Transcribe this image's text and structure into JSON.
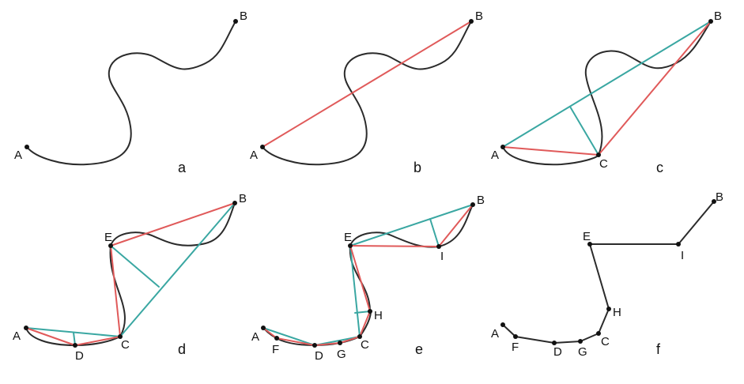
{
  "colors": {
    "curve": "#2b2b2b",
    "chord": "#e05a5a",
    "perpendicular": "#3aa7a2",
    "simplified": "#2b2b2b"
  },
  "panels": [
    {
      "label": "a",
      "points": [
        "A",
        "B"
      ]
    },
    {
      "label": "b",
      "points": [
        "A",
        "B"
      ]
    },
    {
      "label": "c",
      "points": [
        "A",
        "B",
        "C"
      ]
    },
    {
      "label": "d",
      "points": [
        "A",
        "B",
        "C",
        "D",
        "E"
      ]
    },
    {
      "label": "e",
      "points": [
        "A",
        "B",
        "C",
        "D",
        "E",
        "F",
        "G",
        "H",
        "I"
      ]
    },
    {
      "label": "f",
      "points": [
        "A",
        "B",
        "C",
        "D",
        "E",
        "F",
        "G",
        "H",
        "I"
      ]
    }
  ]
}
